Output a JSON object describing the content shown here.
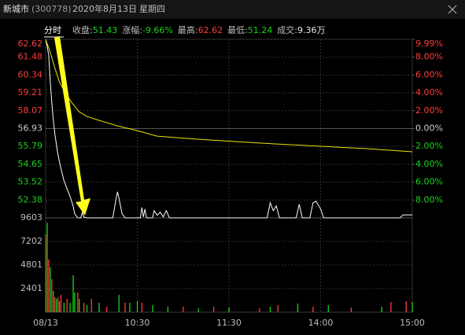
{
  "header": {
    "name": "新城市",
    "code": "(300778)",
    "date": "2020年8月13日",
    "weekday": "星期四"
  },
  "quote": {
    "tab": "分时",
    "fields": [
      {
        "label": "收盘:",
        "value": "51.43"
      },
      {
        "label": "涨幅:",
        "value": "-9.66%"
      },
      {
        "label": "最高:",
        "value": "62.62"
      },
      {
        "label": "最低:",
        "value": "51.24"
      },
      {
        "label": "成交:",
        "value": "9.36万"
      }
    ]
  },
  "chart_data": [
    {
      "type": "line",
      "xlim": [
        0,
        240
      ],
      "ylim": [
        51.24,
        62.62
      ],
      "yticks": [
        62.62,
        61.48,
        60.34,
        59.21,
        58.07,
        56.93,
        55.79,
        54.65,
        53.52,
        52.38
      ],
      "y2lim": [
        -9.99,
        9.99
      ],
      "y2ticks": [
        {
          "value": 9.99,
          "label": "9.99%"
        },
        {
          "value": 8,
          "label": "8.00%"
        },
        {
          "value": 6,
          "label": "6.00%"
        },
        {
          "value": 4,
          "label": "4.00%"
        },
        {
          "value": 2,
          "label": "2.00%"
        },
        {
          "value": 0,
          "label": "0.00%"
        },
        {
          "value": -2,
          "label": "2.00%"
        },
        {
          "value": -4,
          "label": "4.00%"
        },
        {
          "value": -6,
          "label": "6.00%"
        },
        {
          "value": -8,
          "label": "8.00%"
        }
      ],
      "tick_colors": {
        "up": "#ff3b3b",
        "flat": "#cccccc",
        "down": "#19d419"
      },
      "grid": true,
      "series": [
        {
          "color": "#ffffff",
          "x": [
            0,
            1,
            2,
            3,
            4,
            5,
            6,
            8,
            10,
            12,
            14,
            16,
            18,
            19,
            21,
            23,
            24,
            25,
            27,
            44,
            46,
            47,
            48,
            50,
            52,
            62,
            63,
            64,
            65,
            66,
            70,
            71,
            73,
            75,
            77,
            79,
            81,
            145,
            147,
            149,
            151,
            153,
            164,
            166,
            168,
            173,
            175,
            177,
            180,
            182,
            232,
            234,
            240
          ],
          "values": [
            62.62,
            62.2,
            61.6,
            60.0,
            58.6,
            57.5,
            56.6,
            55.3,
            54.4,
            53.6,
            53.1,
            52.6,
            52.0,
            51.5,
            51.24,
            51.24,
            51.6,
            51.3,
            51.24,
            51.24,
            52.4,
            52.9,
            52.5,
            51.5,
            51.24,
            51.24,
            51.9,
            51.3,
            51.8,
            51.24,
            51.24,
            51.7,
            51.4,
            51.6,
            51.3,
            51.7,
            51.24,
            51.24,
            52.2,
            51.7,
            52.0,
            51.24,
            51.24,
            52.1,
            51.24,
            51.24,
            52.2,
            52.3,
            51.8,
            51.24,
            51.24,
            51.43,
            51.43
          ]
        },
        {
          "color": "#e6e600",
          "x": [
            0,
            3,
            6,
            9,
            13,
            17,
            22,
            27,
            35,
            47,
            60,
            73,
            100,
            125,
            150,
            180,
            210,
            240
          ],
          "values": [
            62.62,
            61.8,
            60.8,
            59.9,
            59.2,
            58.6,
            58.0,
            57.7,
            57.45,
            57.1,
            56.8,
            56.45,
            56.25,
            56.1,
            55.95,
            55.8,
            55.65,
            55.45
          ]
        }
      ]
    },
    {
      "type": "bar",
      "xlim": [
        0,
        240
      ],
      "ylim": [
        0,
        9603
      ],
      "yticks": [
        9603,
        7202,
        4801,
        2401
      ],
      "xticks": [
        {
          "value": 0,
          "label": "08/13"
        },
        {
          "value": 60,
          "label": "10:30"
        },
        {
          "value": 120,
          "label": "11:30"
        },
        {
          "value": 180,
          "label": "14:00"
        },
        {
          "value": 240,
          "label": "15:00"
        }
      ],
      "grid": true,
      "x": [
        0,
        1,
        2,
        3,
        4,
        5,
        6,
        7,
        8,
        9,
        10,
        12,
        14,
        16,
        18,
        19,
        21,
        22,
        25,
        27,
        30,
        35,
        40,
        48,
        52,
        55,
        60,
        63,
        70,
        80,
        90,
        100,
        110,
        120,
        140,
        147,
        152,
        165,
        175,
        185,
        200,
        220,
        226,
        236,
        240
      ],
      "values": [
        7900,
        9100,
        5360,
        4560,
        3360,
        2160,
        1520,
        1360,
        1520,
        1120,
        1760,
        960,
        1360,
        960,
        3760,
        2000,
        2000,
        1360,
        960,
        720,
        1360,
        960,
        560,
        1760,
        960,
        960,
        1120,
        960,
        720,
        560,
        560,
        400,
        560,
        480,
        400,
        560,
        720,
        880,
        560,
        720,
        480,
        560,
        1040,
        1120,
        1040
      ],
      "colors": [
        "#ff3b3b",
        "#19d419",
        "#ff3b3b",
        "#19d419",
        "#ff3b3b",
        "#19d419",
        "#ff3b3b",
        "#19d419",
        "#ff3b3b",
        "#19d419",
        "#ff3b3b",
        "#19d419",
        "#ff3b3b",
        "#19d419",
        "#19d419",
        "#19d419",
        "#ff3b3b",
        "#19d419",
        "#ff3b3b",
        "#19d419",
        "#ff3b3b",
        "#19d419",
        "#ff3b3b",
        "#19d419",
        "#ff3b3b",
        "#19d419",
        "#19d419",
        "#ff3b3b",
        "#19d419",
        "#19d419",
        "#ff3b3b",
        "#19d419",
        "#ff3b3b",
        "#19d419",
        "#ff3b3b",
        "#19d419",
        "#ff3b3b",
        "#19d419",
        "#ff3b3b",
        "#19d419",
        "#ff3b3b",
        "#19d419",
        "#ff3b3b",
        "#ff3b3b",
        "#19d419"
      ]
    }
  ]
}
